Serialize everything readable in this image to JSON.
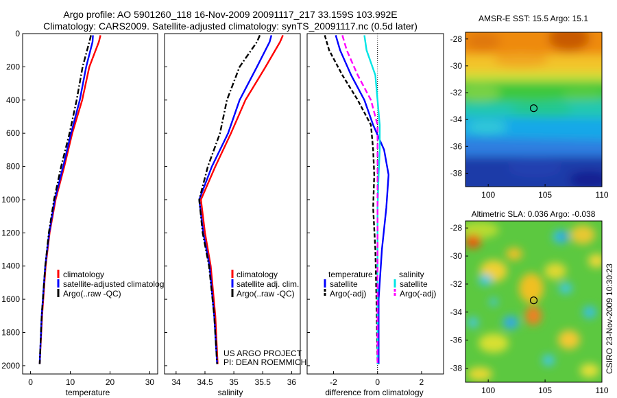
{
  "header": {
    "line1": "Argo profile: AO 5901260_118 16-Nov-2009 20091117_217 33.159S 103.992E",
    "line2": "Climatology: CARS2009. Satellite-adjusted climatology: synTS_20091117.nc (0.5d later)"
  },
  "colors": {
    "clim": "#ff0000",
    "sat": "#0000ff",
    "argo": "#000000",
    "satsal": "#00e5e5",
    "argosal": "#ff00ff"
  },
  "depth_ticks": [
    "0",
    "200",
    "400",
    "600",
    "800",
    "1000",
    "1200",
    "1400",
    "1600",
    "1800",
    "2000"
  ],
  "chart_data": [
    {
      "type": "line",
      "id": "temp",
      "xlabel": "temperature",
      "ylabel": "",
      "title": "",
      "xlim": [
        -2,
        32
      ],
      "ylim": [
        0,
        2050
      ],
      "y_reversed": true,
      "xticks": [
        "0",
        "10",
        "20",
        "30"
      ],
      "legend": [
        "climatology",
        "satellite-adjusted climatology",
        "Argo(..raw -QC)"
      ],
      "series": [
        {
          "name": "climatology",
          "color": "#ff0000",
          "dash": "",
          "x": [
            17.6,
            17.2,
            14.8,
            13.0,
            10.5,
            8.5,
            6.3,
            4.8,
            3.8,
            2.9,
            2.3
          ],
          "y": [
            10,
            50,
            200,
            400,
            600,
            800,
            1000,
            1200,
            1400,
            1700,
            1990
          ]
        },
        {
          "name": "satellite-adjusted climatology",
          "color": "#0000ff",
          "dash": "",
          "x": [
            15.7,
            15.6,
            14.0,
            12.4,
            10.2,
            8.2,
            6.1,
            4.7,
            3.7,
            2.8,
            2.3
          ],
          "y": [
            10,
            50,
            200,
            400,
            600,
            800,
            1000,
            1200,
            1400,
            1700,
            1990
          ]
        },
        {
          "name": "Argo(..raw -QC)",
          "color": "#000000",
          "dash": "8,3,2,3",
          "x": [
            15.2,
            14.8,
            13.1,
            11.6,
            9.8,
            7.7,
            5.9,
            4.6,
            3.7,
            2.8,
            2.3
          ],
          "y": [
            10,
            50,
            200,
            400,
            600,
            800,
            1000,
            1200,
            1400,
            1700,
            1990
          ]
        }
      ]
    },
    {
      "type": "line",
      "id": "sal",
      "xlabel": "salinity",
      "ylabel": "",
      "title": "",
      "xlim": [
        33.8,
        36.15
      ],
      "ylim": [
        0,
        2050
      ],
      "y_reversed": true,
      "xticks": [
        "34",
        "34.5",
        "35",
        "35.5",
        "36"
      ],
      "legend": [
        "climatology",
        "satellite adj. clim.",
        "Argo(..raw -QC)"
      ],
      "annotation": [
        "US ARGO PROJECT",
        "PI: DEAN ROEMMICH"
      ],
      "series": [
        {
          "name": "climatology",
          "color": "#ff0000",
          "dash": "",
          "x": [
            35.85,
            35.8,
            35.55,
            35.2,
            34.95,
            34.68,
            34.43,
            34.5,
            34.6,
            34.68,
            34.72
          ],
          "y": [
            10,
            50,
            200,
            400,
            600,
            800,
            1000,
            1200,
            1400,
            1700,
            1990
          ]
        },
        {
          "name": "satellite adj. clim.",
          "color": "#0000ff",
          "dash": "",
          "x": [
            35.65,
            35.62,
            35.4,
            35.1,
            34.9,
            34.62,
            34.4,
            34.47,
            34.58,
            34.66,
            34.71
          ],
          "y": [
            10,
            50,
            200,
            400,
            600,
            800,
            1000,
            1200,
            1400,
            1700,
            1990
          ]
        },
        {
          "name": "Argo(..raw -QC)",
          "color": "#000000",
          "dash": "8,3,2,3",
          "x": [
            35.45,
            35.4,
            35.1,
            34.88,
            34.76,
            34.55,
            34.4,
            34.46,
            34.57,
            34.66,
            34.71
          ],
          "y": [
            10,
            50,
            200,
            400,
            600,
            800,
            1000,
            1200,
            1400,
            1700,
            1990
          ]
        }
      ]
    },
    {
      "type": "line",
      "id": "diff",
      "xlabel": "difference from climatology",
      "ylabel": "",
      "title": "",
      "xlim": [
        -3.2,
        3.0
      ],
      "ylim": [
        0,
        2050
      ],
      "y_reversed": true,
      "xticks": [
        "-2",
        "0",
        "2"
      ],
      "legend_left_title": "temperature",
      "legend_right_title": "salinity",
      "legend_left": [
        "satellite",
        "Argo(-adj)"
      ],
      "legend_right": [
        "satellite",
        "Argo(-adj)"
      ],
      "series": [
        {
          "name": "temperature satellite",
          "color": "#0000ff",
          "dash": "",
          "x": [
            -1.9,
            -1.7,
            -1.2,
            -0.6,
            -0.2,
            0.3,
            0.5,
            0.4,
            0.2,
            0.05,
            0.05
          ],
          "y": [
            10,
            100,
            250,
            400,
            550,
            700,
            850,
            1050,
            1300,
            1600,
            1990
          ]
        },
        {
          "name": "temperature Argo(-adj)",
          "color": "#000000",
          "dash": "6,3",
          "x": [
            -2.4,
            -2.2,
            -1.6,
            -0.9,
            -0.3,
            -0.2,
            -0.15,
            -0.2,
            -0.1,
            -0.05,
            0.0
          ],
          "y": [
            10,
            100,
            250,
            400,
            550,
            700,
            850,
            1050,
            1300,
            1600,
            1990
          ]
        },
        {
          "name": "salinity satellite",
          "color": "#00e5e5",
          "dash": "",
          "x": [
            -0.6,
            -0.5,
            -0.1,
            0.0,
            0.1,
            0.1,
            0.05,
            0.0,
            0.0,
            0.0,
            0.0
          ],
          "y": [
            10,
            100,
            250,
            400,
            550,
            700,
            850,
            1050,
            1300,
            1600,
            1990
          ]
        },
        {
          "name": "salinity Argo(-adj)",
          "color": "#ff00ff",
          "dash": "8,4",
          "x": [
            -1.6,
            -1.4,
            -0.9,
            -0.3,
            0.0,
            0.0,
            0.0,
            0.0,
            0.0,
            0.0,
            0.0
          ],
          "y": [
            10,
            100,
            250,
            400,
            550,
            700,
            850,
            1050,
            1300,
            1600,
            1990
          ]
        }
      ]
    },
    {
      "type": "heatmap",
      "id": "sst",
      "title": "AMSR-E SST: 15.5 Argo: 15.1",
      "xlim": [
        98,
        110
      ],
      "ylim": [
        -39,
        -27.5
      ],
      "xticks": [
        "100",
        "105",
        "110"
      ],
      "yticks": [
        "-28",
        "-30",
        "-32",
        "-34",
        "-36",
        "-38"
      ],
      "marker": {
        "lon": 104.0,
        "lat": -33.16
      }
    },
    {
      "type": "heatmap",
      "id": "sla",
      "title": "Altimetric SLA: 0.036 Argo: -0.038",
      "xlim": [
        98,
        110
      ],
      "ylim": [
        -39,
        -27.5
      ],
      "xticks": [
        "100",
        "105",
        "110"
      ],
      "yticks": [
        "-28",
        "-30",
        "-32",
        "-34",
        "-36",
        "-38"
      ],
      "marker": {
        "lon": 104.0,
        "lat": -33.16
      }
    }
  ],
  "side_label": "CSIRO 23-Nov-2009 10:30:23"
}
